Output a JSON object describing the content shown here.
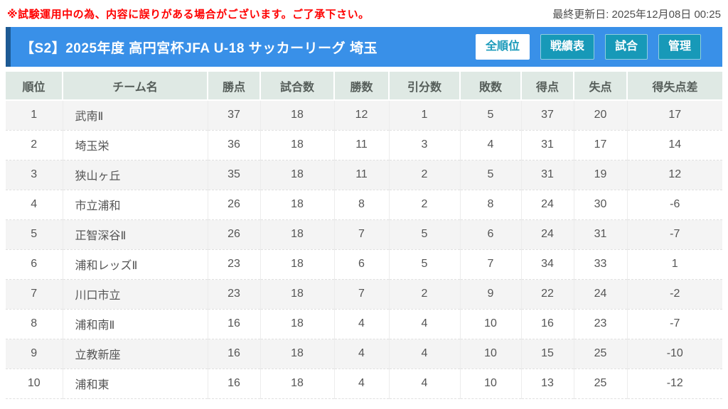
{
  "notice": {
    "warning": "※試験運用中の為、内容に誤りがある場合がございます。ご了承下さい。",
    "last_updated": "最終更新日: 2025年12月08日 00:25"
  },
  "header": {
    "title": "【S2】2025年度 高円宮杯JFA U-18 サッカーリーグ 埼玉",
    "tabs": [
      {
        "name": "all-rankings",
        "label": "全順位",
        "active": true
      },
      {
        "name": "win-loss-table",
        "label": "戦績表",
        "active": false
      },
      {
        "name": "matches",
        "label": "試合",
        "active": false
      },
      {
        "name": "admin",
        "label": "管理",
        "active": false
      }
    ]
  },
  "standings": {
    "columns": [
      "順位",
      "チーム名",
      "勝点",
      "試合数",
      "勝数",
      "引分数",
      "敗数",
      "得点",
      "失点",
      "得失点差"
    ],
    "rows": [
      [
        "1",
        "武南Ⅱ",
        "37",
        "18",
        "12",
        "1",
        "5",
        "37",
        "20",
        "17"
      ],
      [
        "2",
        "埼玉栄",
        "36",
        "18",
        "11",
        "3",
        "4",
        "31",
        "17",
        "14"
      ],
      [
        "3",
        "狭山ヶ丘",
        "35",
        "18",
        "11",
        "2",
        "5",
        "31",
        "19",
        "12"
      ],
      [
        "4",
        "市立浦和",
        "26",
        "18",
        "8",
        "2",
        "8",
        "24",
        "30",
        "-6"
      ],
      [
        "5",
        "正智深谷Ⅱ",
        "26",
        "18",
        "7",
        "5",
        "6",
        "24",
        "31",
        "-7"
      ],
      [
        "6",
        "浦和レッズⅡ",
        "23",
        "18",
        "6",
        "5",
        "7",
        "34",
        "33",
        "1"
      ],
      [
        "7",
        "川口市立",
        "23",
        "18",
        "7",
        "2",
        "9",
        "22",
        "24",
        "-2"
      ],
      [
        "8",
        "浦和南Ⅱ",
        "16",
        "18",
        "4",
        "4",
        "10",
        "16",
        "23",
        "-7"
      ],
      [
        "9",
        "立教新座",
        "16",
        "18",
        "4",
        "4",
        "10",
        "15",
        "25",
        "-10"
      ],
      [
        "10",
        "浦和東",
        "16",
        "18",
        "4",
        "4",
        "10",
        "13",
        "25",
        "-12"
      ]
    ]
  },
  "colors": {
    "warning_red": "#ff0000",
    "header_blue": "#3990e8",
    "header_accent": "#1d5a94",
    "tab_teal": "#1799b8",
    "active_tab_text": "#1a9aba",
    "table_header_bg": "#dfe9e4"
  }
}
